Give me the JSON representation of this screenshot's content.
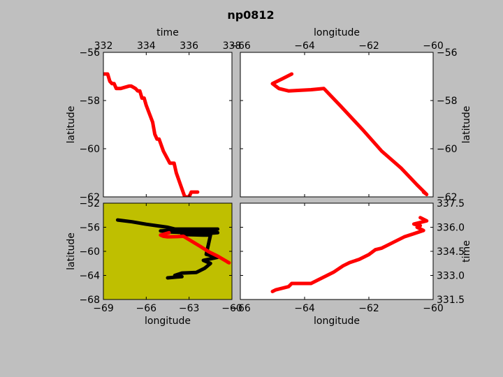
{
  "figure": {
    "title": "np0812",
    "background": "#bfbfbf"
  },
  "chart_data": [
    {
      "type": "line",
      "id": "time-latitude",
      "xlabel": "time",
      "ylabel": "latitude",
      "xlim": [
        332,
        338
      ],
      "ylim": [
        -62,
        -56
      ],
      "xticks": [
        "332",
        "334",
        "336",
        "338"
      ],
      "yticks": [
        "−56",
        "−58",
        "−60",
        "−62"
      ],
      "series": [
        {
          "color": "#ff0000",
          "x": [
            332.0,
            332.2,
            332.3,
            332.4,
            332.5,
            332.6,
            332.8,
            333.2,
            333.3,
            333.5,
            333.6,
            333.7,
            333.8,
            333.9,
            334.0,
            334.3,
            334.4,
            334.5,
            334.6,
            334.8,
            335.1,
            335.3,
            335.4,
            335.6,
            335.8,
            336.0,
            336.1,
            336.2,
            336.4
          ],
          "y": [
            -56.9,
            -56.9,
            -57.2,
            -57.3,
            -57.3,
            -57.5,
            -57.5,
            -57.4,
            -57.4,
            -57.5,
            -57.6,
            -57.6,
            -57.9,
            -57.9,
            -58.2,
            -58.9,
            -59.4,
            -59.6,
            -59.6,
            -60.1,
            -60.6,
            -60.6,
            -61.0,
            -61.5,
            -62.0,
            -62.0,
            -61.8,
            -61.8,
            -61.8
          ]
        }
      ]
    },
    {
      "type": "line",
      "id": "longitude-latitude",
      "xlabel": "longitude",
      "ylabel": "latitude",
      "xlim": [
        -66,
        -60
      ],
      "ylim": [
        -62,
        -56
      ],
      "xticks": [
        "−66",
        "−64",
        "−62",
        "−60"
      ],
      "yticks": [
        "−56",
        "−58",
        "−60",
        "−62"
      ],
      "series": [
        {
          "color": "#ff0000",
          "x": [
            -64.4,
            -64.7,
            -65.0,
            -64.8,
            -64.5,
            -63.8,
            -63.4,
            -62.9,
            -62.2,
            -61.6,
            -61.0,
            -60.5,
            -60.2,
            -60.3
          ],
          "y": [
            -56.9,
            -57.1,
            -57.3,
            -57.5,
            -57.6,
            -57.55,
            -57.5,
            -58.2,
            -59.2,
            -60.1,
            -60.8,
            -61.5,
            -61.9,
            -61.8
          ]
        }
      ]
    },
    {
      "type": "line",
      "id": "longitude-latitude-map",
      "xlabel": "longitude",
      "ylabel": "latitude",
      "xlim": [
        -69,
        -60
      ],
      "ylim": [
        -68,
        -52
      ],
      "xticks": [
        "−69",
        "−66",
        "−63",
        "−60"
      ],
      "yticks": [
        "−52",
        "−56",
        "−60",
        "−64",
        "−68"
      ],
      "background": "#bfbf00",
      "series": [
        {
          "color": "#000000",
          "x": [
            -68.0,
            -67.0,
            -66.0,
            -64.5,
            -64.0,
            -63.0,
            -62.0,
            -61.0,
            -62.5,
            -64.0,
            -65.0,
            -64.2,
            -63.0,
            -62.0,
            -61.0,
            -62.0,
            -63.5,
            -62.0,
            -61.5,
            -61.8,
            -61.0,
            -62.0,
            -61.5,
            -61.9,
            -62.5,
            -63.5,
            -64.0,
            -63.5,
            -64.5
          ],
          "y": [
            -54.8,
            -55.1,
            -55.5,
            -56.0,
            -56.3,
            -56.3,
            -56.3,
            -56.3,
            -56.5,
            -56.5,
            -56.6,
            -56.8,
            -56.9,
            -56.9,
            -56.9,
            -57.1,
            -57.2,
            -57.3,
            -57.3,
            -60.5,
            -61.0,
            -61.5,
            -62.0,
            -62.8,
            -63.5,
            -63.6,
            -64.0,
            -64.2,
            -64.4
          ]
        },
        {
          "color": "#ff0000",
          "x": [
            -64.4,
            -64.7,
            -65.0,
            -64.8,
            -64.5,
            -63.8,
            -63.4,
            -62.9,
            -62.2,
            -61.6,
            -61.0,
            -60.5,
            -60.2,
            -60.3
          ],
          "y": [
            -56.9,
            -57.1,
            -57.3,
            -57.5,
            -57.6,
            -57.55,
            -57.5,
            -58.2,
            -59.2,
            -60.1,
            -60.8,
            -61.5,
            -61.9,
            -61.8
          ]
        }
      ]
    },
    {
      "type": "line",
      "id": "longitude-time",
      "xlabel": "longitude",
      "ylabel": "time",
      "xlim": [
        -66,
        -60
      ],
      "ylim": [
        331.5,
        337.5
      ],
      "xticks": [
        "−66",
        "−64",
        "−62",
        "−60"
      ],
      "yticks": [
        "337.5",
        "336.0",
        "334.5",
        "333.0",
        "331.5"
      ],
      "series": [
        {
          "color": "#ff0000",
          "x": [
            -65.0,
            -64.9,
            -64.5,
            -64.4,
            -63.8,
            -63.6,
            -63.3,
            -63.1,
            -62.8,
            -62.6,
            -62.3,
            -62.0,
            -61.8,
            -61.6,
            -61.4,
            -61.2,
            -60.9,
            -60.6,
            -60.3,
            -60.5,
            -60.4,
            -60.6,
            -60.2,
            -60.4
          ],
          "y": [
            332.0,
            332.1,
            332.3,
            332.5,
            332.5,
            332.7,
            333.0,
            333.2,
            333.6,
            333.8,
            334.0,
            334.3,
            334.6,
            334.7,
            334.9,
            335.1,
            335.4,
            335.6,
            335.8,
            336.0,
            336.1,
            336.2,
            336.4,
            336.6
          ]
        }
      ]
    }
  ]
}
